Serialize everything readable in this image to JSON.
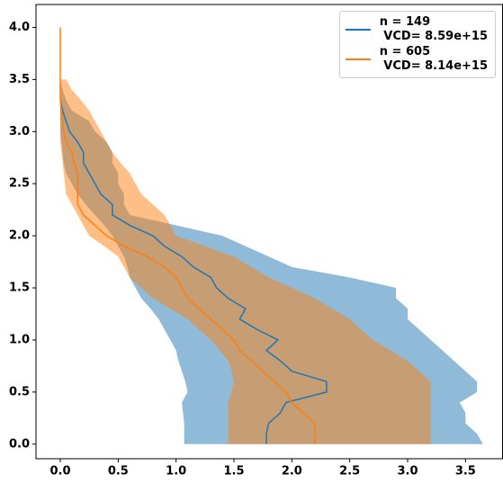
{
  "chart_data": {
    "type": "profile",
    "y": [
      0,
      0.1,
      0.2,
      0.3,
      0.4,
      0.5,
      0.6,
      0.7,
      0.8,
      0.9,
      1.0,
      1.1,
      1.2,
      1.3,
      1.4,
      1.5,
      1.6,
      1.7,
      1.8,
      1.9,
      2.0,
      2.1,
      2.2,
      2.3,
      2.4,
      2.5,
      2.6,
      2.7,
      2.8,
      2.9,
      3.0,
      3.1,
      3.2,
      3.3,
      3.4,
      3.5,
      3.6,
      3.7,
      3.8,
      3.9,
      4.0
    ],
    "series": [
      {
        "name": "n = 149\n VCD= 8.59e+15",
        "color": "#1f77b4",
        "values": [
          1.78,
          1.78,
          1.8,
          1.9,
          1.95,
          2.3,
          2.3,
          2.0,
          1.9,
          1.78,
          1.88,
          1.7,
          1.55,
          1.6,
          1.45,
          1.35,
          1.3,
          1.15,
          1.05,
          0.9,
          0.8,
          0.6,
          0.45,
          0.45,
          0.35,
          0.3,
          0.25,
          0.2,
          0.2,
          0.15,
          0.08,
          0.05,
          0.02,
          0,
          null,
          null,
          null,
          null,
          null,
          null,
          null
        ],
        "band_lower": [
          1.07,
          1.07,
          1.07,
          1.06,
          1.05,
          1.1,
          1.08,
          1.05,
          1.02,
          1.0,
          0.95,
          0.9,
          0.85,
          0.78,
          0.7,
          0.65,
          0.6,
          0.58,
          0.55,
          0.5,
          0.45,
          0.38,
          0.3,
          0.22,
          0.15,
          0.1,
          0.05,
          0.03,
          0.02,
          0.01,
          0,
          0,
          0,
          0,
          0,
          0,
          null,
          null,
          null,
          null,
          null
        ],
        "band_upper": [
          3.65,
          3.6,
          3.5,
          3.5,
          3.45,
          3.6,
          3.6,
          3.5,
          3.4,
          3.3,
          3.2,
          3.1,
          3.0,
          3.0,
          2.9,
          2.9,
          2.5,
          2.0,
          1.8,
          1.6,
          1.4,
          1.0,
          0.6,
          0.55,
          0.55,
          0.5,
          0.5,
          0.45,
          0.45,
          0.4,
          0.3,
          0.25,
          0.1,
          0.05,
          0.02,
          0,
          null,
          null,
          null,
          null,
          null
        ]
      },
      {
        "name": "n = 605\n VCD= 8.14e+15",
        "color": "#ff7f0e",
        "values": [
          2.2,
          2.2,
          2.2,
          2.1,
          2.0,
          1.95,
          1.85,
          1.75,
          1.65,
          1.55,
          1.5,
          1.4,
          1.3,
          1.2,
          1.1,
          1.05,
          1.0,
          0.9,
          0.75,
          0.55,
          0.4,
          0.3,
          0.2,
          0.15,
          0.15,
          0.15,
          0.15,
          0.12,
          0.1,
          0.05,
          0.03,
          0.02,
          0.01,
          0,
          0,
          0,
          0,
          0,
          0,
          0,
          0
        ],
        "band_lower": [
          1.45,
          1.45,
          1.45,
          1.45,
          1.45,
          1.48,
          1.5,
          1.48,
          1.45,
          1.38,
          1.3,
          1.2,
          1.1,
          0.95,
          0.8,
          0.7,
          0.6,
          0.55,
          0.5,
          0.38,
          0.25,
          0.2,
          0.15,
          0.1,
          0.05,
          0.04,
          0.03,
          0.02,
          0.01,
          0,
          0,
          0,
          0,
          0,
          0,
          0,
          null,
          null,
          null,
          null,
          null
        ],
        "band_upper": [
          3.2,
          3.2,
          3.2,
          3.2,
          3.2,
          3.2,
          3.2,
          3.1,
          3.0,
          2.85,
          2.7,
          2.6,
          2.5,
          2.35,
          2.2,
          2.0,
          1.8,
          1.65,
          1.5,
          1.25,
          1.0,
          0.95,
          0.9,
          0.8,
          0.7,
          0.65,
          0.6,
          0.52,
          0.45,
          0.4,
          0.35,
          0.3,
          0.25,
          0.18,
          0.1,
          0.05,
          null,
          null,
          null,
          null,
          null
        ]
      }
    ],
    "band_opacity": 0.5,
    "xlim": [
      -0.21,
      3.82
    ],
    "ylim": [
      -0.14,
      4.22
    ],
    "xticks": [
      {
        "value": 0,
        "label": "0.0"
      },
      0.5,
      {
        "value": 1,
        "label": "1.0"
      },
      1.5,
      {
        "value": 2,
        "label": "2.0"
      },
      2.5,
      {
        "value": 3,
        "label": "3.0"
      },
      3.5
    ],
    "yticks": [
      {
        "value": 0,
        "label": "0.0"
      },
      0.5,
      {
        "value": 1,
        "label": "1.0"
      },
      1.5,
      {
        "value": 2,
        "label": "2.0"
      },
      2.5,
      {
        "value": 3,
        "label": "3.0"
      },
      3.5,
      {
        "value": 4,
        "label": "4.0"
      }
    ],
    "legend": "upper right"
  }
}
